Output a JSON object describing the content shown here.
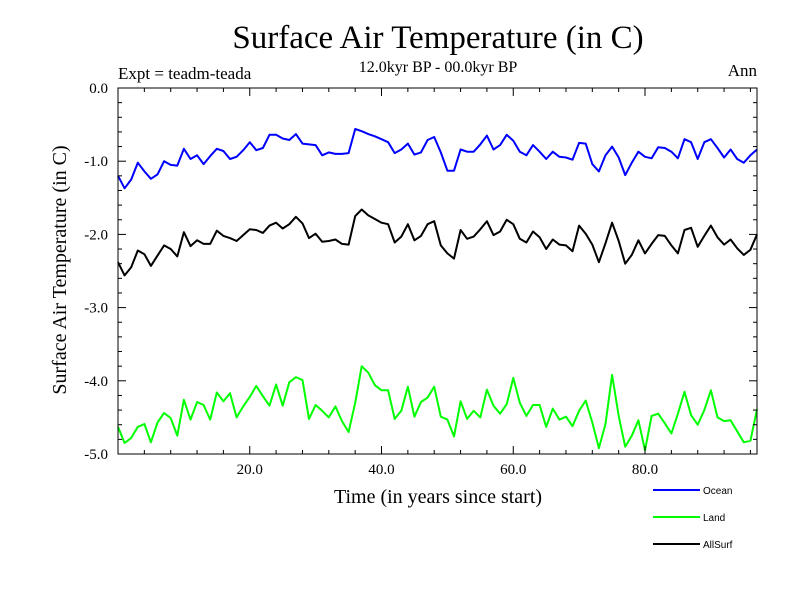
{
  "chart_data": {
    "type": "line",
    "title": "Surface Air Temperature (in C)",
    "subtitle": "12.0kyr BP - 00.0kyr BP",
    "experiment_label": "Expt = teadm-teada",
    "season_label": "Ann",
    "xlabel": "Time (in years since start)",
    "ylabel": "Surface Air Temperature (in C)",
    "xlim": [
      0,
      97
    ],
    "ylim": [
      -5.0,
      0.0
    ],
    "x_ticks": [
      20,
      40,
      60,
      80
    ],
    "x_tick_labels": [
      "20.0",
      "40.0",
      "60.0",
      "80.0"
    ],
    "y_ticks": [
      0,
      -1,
      -2,
      -3,
      -4,
      -5
    ],
    "y_tick_labels": [
      "0.0",
      "-1.0",
      "-2.0",
      "-3.0",
      "-4.0",
      "-5.0"
    ],
    "x_start": 0,
    "x_step": 1,
    "series": [
      {
        "name": "Ocean",
        "color": "#0000ff",
        "values": [
          -1.2,
          -1.37,
          -1.25,
          -1.02,
          -1.14,
          -1.24,
          -1.18,
          -1.0,
          -1.05,
          -1.06,
          -0.83,
          -0.97,
          -0.92,
          -1.04,
          -0.93,
          -0.83,
          -0.86,
          -0.97,
          -0.94,
          -0.85,
          -0.74,
          -0.85,
          -0.82,
          -0.64,
          -0.64,
          -0.69,
          -0.71,
          -0.63,
          -0.76,
          -0.77,
          -0.78,
          -0.92,
          -0.88,
          -0.9,
          -0.9,
          -0.89,
          -0.56,
          -0.59,
          -0.63,
          -0.66,
          -0.7,
          -0.74,
          -0.89,
          -0.84,
          -0.76,
          -0.91,
          -0.88,
          -0.71,
          -0.67,
          -0.88,
          -1.13,
          -1.13,
          -0.84,
          -0.87,
          -0.87,
          -0.77,
          -0.65,
          -0.84,
          -0.78,
          -0.64,
          -0.72,
          -0.87,
          -0.92,
          -0.78,
          -0.87,
          -0.97,
          -0.87,
          -0.94,
          -0.95,
          -0.98,
          -0.75,
          -0.76,
          -1.04,
          -1.14,
          -0.92,
          -0.8,
          -0.95,
          -1.19,
          -1.02,
          -0.87,
          -0.94,
          -0.96,
          -0.81,
          -0.82,
          -0.87,
          -0.96,
          -0.7,
          -0.74,
          -0.97,
          -0.74,
          -0.7,
          -0.82,
          -0.95,
          -0.84,
          -0.97,
          -1.02,
          -0.92,
          -0.84
        ]
      },
      {
        "name": "Land",
        "color": "#00ff00",
        "values": [
          -4.63,
          -4.85,
          -4.78,
          -4.63,
          -4.59,
          -4.84,
          -4.57,
          -4.44,
          -4.51,
          -4.75,
          -4.26,
          -4.53,
          -4.29,
          -4.33,
          -4.53,
          -4.16,
          -4.28,
          -4.17,
          -4.5,
          -4.35,
          -4.22,
          -4.07,
          -4.21,
          -4.34,
          -4.05,
          -4.34,
          -4.02,
          -3.95,
          -3.99,
          -4.52,
          -4.33,
          -4.41,
          -4.5,
          -4.35,
          -4.55,
          -4.7,
          -4.3,
          -3.8,
          -3.89,
          -4.06,
          -4.13,
          -4.13,
          -4.52,
          -4.41,
          -4.08,
          -4.49,
          -4.29,
          -4.23,
          -4.08,
          -4.49,
          -4.53,
          -4.76,
          -4.28,
          -4.52,
          -4.41,
          -4.5,
          -4.12,
          -4.34,
          -4.45,
          -4.32,
          -3.96,
          -4.3,
          -4.48,
          -4.33,
          -4.33,
          -4.63,
          -4.38,
          -4.53,
          -4.49,
          -4.62,
          -4.41,
          -4.27,
          -4.57,
          -4.92,
          -4.59,
          -3.92,
          -4.48,
          -4.9,
          -4.75,
          -4.54,
          -4.95,
          -4.48,
          -4.45,
          -4.58,
          -4.72,
          -4.45,
          -4.15,
          -4.47,
          -4.6,
          -4.4,
          -4.13,
          -4.5,
          -4.55,
          -4.54,
          -4.69,
          -4.84,
          -4.82,
          -4.39
        ]
      },
      {
        "name": "AllSurf",
        "color": "#000000",
        "values": [
          -2.38,
          -2.56,
          -2.45,
          -2.22,
          -2.27,
          -2.43,
          -2.29,
          -2.15,
          -2.2,
          -2.3,
          -1.97,
          -2.16,
          -2.08,
          -2.13,
          -2.13,
          -1.95,
          -2.02,
          -2.05,
          -2.09,
          -2.01,
          -1.93,
          -1.94,
          -1.98,
          -1.88,
          -1.84,
          -1.92,
          -1.86,
          -1.76,
          -1.85,
          -2.05,
          -1.99,
          -2.1,
          -2.09,
          -2.07,
          -2.13,
          -2.14,
          -1.75,
          -1.66,
          -1.74,
          -1.79,
          -1.84,
          -1.86,
          -2.11,
          -2.03,
          -1.86,
          -2.08,
          -2.02,
          -1.86,
          -1.82,
          -2.15,
          -2.26,
          -2.33,
          -1.94,
          -2.06,
          -2.03,
          -1.93,
          -1.82,
          -2.01,
          -1.96,
          -1.8,
          -1.86,
          -2.06,
          -2.11,
          -1.96,
          -2.04,
          -2.2,
          -2.07,
          -2.14,
          -2.15,
          -2.23,
          -1.88,
          -1.99,
          -2.14,
          -2.38,
          -2.12,
          -1.84,
          -2.09,
          -2.4,
          -2.28,
          -2.08,
          -2.26,
          -2.13,
          -2.01,
          -2.02,
          -2.15,
          -2.26,
          -1.94,
          -1.91,
          -2.17,
          -2.02,
          -1.88,
          -2.04,
          -2.14,
          -2.07,
          -2.19,
          -2.28,
          -2.21,
          -2.0
        ]
      }
    ]
  }
}
